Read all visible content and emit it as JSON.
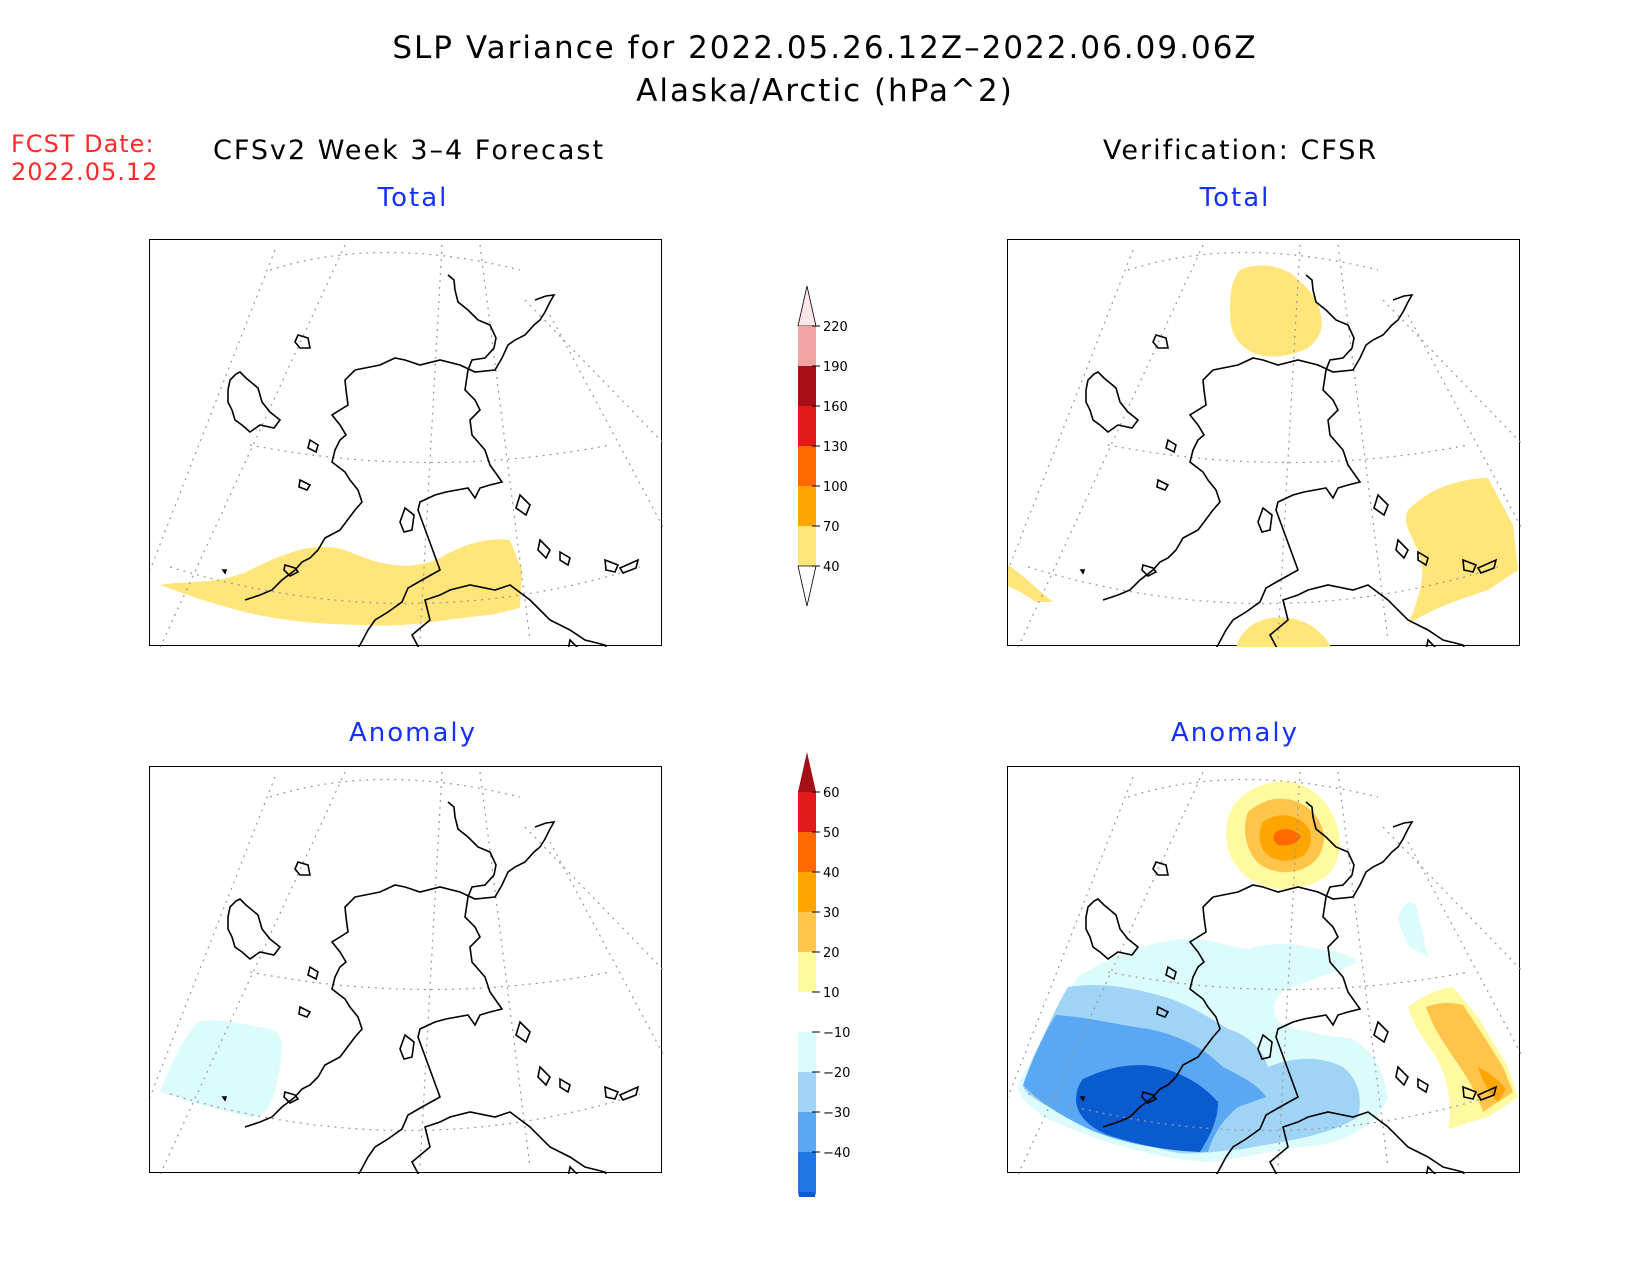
{
  "header": {
    "title_line1": "SLP Variance for 2022.05.26.12Z–2022.06.09.06Z",
    "title_line2": "Alaska/Arctic (hPa^2)",
    "fcst_label": "FCST Date:",
    "fcst_date": "2022.05.12",
    "left_heading": "CFSv2 Week 3–4 Forecast",
    "right_heading": "Verification: CFSR"
  },
  "panels": {
    "forecast_total": {
      "label": "Total",
      "shaded": [
        {
          "feature": "Gulf of Alaska / Aleutians band",
          "level": "40-70"
        }
      ]
    },
    "verification_total": {
      "label": "Total",
      "shaded": [
        {
          "feature": "Arctic Ocean north of Alaska",
          "level": "40-70"
        },
        {
          "feature": "Southeast Alaska / BC coast",
          "level": "40-70"
        },
        {
          "feature": "Western Aleutians edge",
          "level": "40-70"
        },
        {
          "feature": "Southern boundary",
          "level": "40-70"
        }
      ]
    },
    "forecast_anomaly": {
      "label": "Anomaly",
      "shaded": [
        {
          "feature": "Western Bering Sea",
          "level": "-20 to -10"
        }
      ]
    },
    "verification_anomaly": {
      "label": "Anomaly",
      "shaded": [
        {
          "feature": "Arctic Ocean center",
          "level": "10 to 50"
        },
        {
          "feature": "Bering Sea / Aleutians",
          "level": "-40 to -10"
        },
        {
          "feature": "Gulf of Alaska",
          "level": "-30 to -10"
        },
        {
          "feature": "Southeast Alaska coast",
          "level": "10 to 40"
        }
      ]
    }
  },
  "colorbar_total": {
    "ticks": [
      "220",
      "190",
      "160",
      "130",
      "100",
      "70",
      "40"
    ],
    "colors": [
      "#fde5e8",
      "#f3a3a4",
      "#a50f15",
      "#e31a1c",
      "#ff6a00",
      "#ffa500",
      "#ffe57a"
    ]
  },
  "colorbar_anomaly": {
    "ticks": [
      "60",
      "50",
      "40",
      "30",
      "20",
      "10",
      "−10",
      "−20",
      "−30",
      "−40"
    ],
    "colors": [
      "#a50f15",
      "#e31a1c",
      "#ff6a00",
      "#ffa500",
      "#ffc44a",
      "#fffaa0",
      "#ffffff",
      "#dcfcfc",
      "#a0d4f6",
      "#5aa8f4",
      "#1f78e4",
      "#0a5ad0"
    ]
  }
}
